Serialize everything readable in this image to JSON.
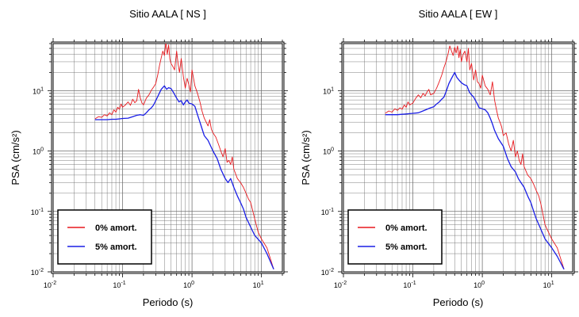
{
  "chart_data": [
    {
      "type": "line",
      "title": "Sitio AALA [ NS ]",
      "xlabel": "Periodo (s)",
      "ylabel": "PSA (cm/s²)",
      "xscale": "log",
      "yscale": "log",
      "xlim": [
        0.01,
        20
      ],
      "ylim": [
        0.01,
        60
      ],
      "grid": true,
      "legend_position": "bottom-left",
      "x_ticks": [
        {
          "base": "10",
          "exp": "-2"
        },
        {
          "base": "10",
          "exp": "-1"
        },
        {
          "base": "10",
          "exp": "0"
        },
        {
          "base": "10",
          "exp": "1"
        }
      ],
      "y_ticks": [
        {
          "base": "10",
          "exp": "-2"
        },
        {
          "base": "10",
          "exp": "-1"
        },
        {
          "base": "10",
          "exp": "0"
        },
        {
          "base": "10",
          "exp": "1"
        }
      ],
      "series": [
        {
          "name": "0% amort.",
          "color": "#e8191e",
          "x": [
            0.04,
            0.045,
            0.05,
            0.055,
            0.06,
            0.065,
            0.07,
            0.075,
            0.08,
            0.085,
            0.09,
            0.095,
            0.1,
            0.11,
            0.12,
            0.13,
            0.14,
            0.15,
            0.16,
            0.17,
            0.18,
            0.19,
            0.2,
            0.22,
            0.24,
            0.26,
            0.28,
            0.3,
            0.32,
            0.34,
            0.36,
            0.38,
            0.4,
            0.42,
            0.44,
            0.46,
            0.48,
            0.5,
            0.53,
            0.56,
            0.6,
            0.63,
            0.66,
            0.7,
            0.75,
            0.8,
            0.85,
            0.9,
            0.95,
            1.0,
            1.1,
            1.2,
            1.3,
            1.4,
            1.5,
            1.6,
            1.7,
            1.8,
            1.9,
            2.0,
            2.2,
            2.4,
            2.6,
            2.8,
            3.0,
            3.2,
            3.4,
            3.6,
            3.8,
            4.0,
            4.5,
            5.0,
            5.5,
            6.0,
            6.5,
            7.0,
            8.0,
            9.0,
            10.0,
            12.0,
            15.0
          ],
          "values": [
            3.4,
            3.7,
            3.6,
            4.0,
            3.8,
            4.3,
            4.0,
            4.8,
            4.4,
            5.3,
            4.9,
            6.0,
            5.3,
            5.8,
            6.5,
            5.7,
            7.2,
            6.3,
            6.8,
            10.5,
            7.5,
            6.2,
            5.8,
            7.5,
            8.5,
            10.2,
            11.5,
            13.0,
            18.0,
            26.0,
            35.0,
            45.0,
            38.0,
            63.0,
            40.0,
            57.0,
            33.0,
            28.0,
            25.0,
            22.0,
            45.0,
            28.0,
            20.0,
            34.0,
            17.0,
            11.0,
            16.0,
            12.5,
            9.5,
            22.0,
            12.0,
            9.0,
            6.5,
            4.5,
            3.5,
            3.0,
            2.6,
            3.3,
            2.3,
            2.0,
            1.7,
            1.3,
            1.0,
            0.8,
            1.1,
            0.65,
            0.7,
            0.6,
            0.8,
            0.5,
            0.35,
            0.3,
            0.25,
            0.2,
            0.16,
            0.14,
            0.075,
            0.045,
            0.035,
            0.025,
            0.011
          ]
        },
        {
          "name": "5% amort.",
          "color": "#1a1ee6",
          "x": [
            0.04,
            0.05,
            0.06,
            0.07,
            0.08,
            0.09,
            0.1,
            0.12,
            0.14,
            0.16,
            0.18,
            0.2,
            0.22,
            0.24,
            0.26,
            0.28,
            0.3,
            0.33,
            0.36,
            0.4,
            0.43,
            0.46,
            0.5,
            0.55,
            0.6,
            0.65,
            0.7,
            0.75,
            0.8,
            0.85,
            0.9,
            1.0,
            1.1,
            1.2,
            1.3,
            1.4,
            1.5,
            1.7,
            2.0,
            2.3,
            2.6,
            3.0,
            3.3,
            3.6,
            4.0,
            4.5,
            5.0,
            5.5,
            6.0,
            7.0,
            8.0,
            10.0,
            12.0,
            15.0
          ],
          "values": [
            3.3,
            3.3,
            3.3,
            3.35,
            3.35,
            3.4,
            3.45,
            3.5,
            3.7,
            3.9,
            4.0,
            3.9,
            4.3,
            4.8,
            5.2,
            5.8,
            6.8,
            8.5,
            10.5,
            12.0,
            10.5,
            11.2,
            10.8,
            9.0,
            7.5,
            6.5,
            6.8,
            5.8,
            6.5,
            7.0,
            6.2,
            6.0,
            5.5,
            4.0,
            3.0,
            2.3,
            1.8,
            1.5,
            1.0,
            0.75,
            0.5,
            0.35,
            0.3,
            0.35,
            0.25,
            0.18,
            0.14,
            0.11,
            0.08,
            0.055,
            0.04,
            0.03,
            0.02,
            0.011
          ]
        }
      ]
    },
    {
      "type": "line",
      "title": "Sitio AALA [ EW ]",
      "xlabel": "Periodo (s)",
      "ylabel": "PSA (cm/s²)",
      "xscale": "log",
      "yscale": "log",
      "xlim": [
        0.01,
        20
      ],
      "ylim": [
        0.01,
        60
      ],
      "grid": true,
      "legend_position": "bottom-left",
      "x_ticks": [
        {
          "base": "10",
          "exp": "-2"
        },
        {
          "base": "10",
          "exp": "-1"
        },
        {
          "base": "10",
          "exp": "0"
        },
        {
          "base": "10",
          "exp": "1"
        }
      ],
      "y_ticks": [
        {
          "base": "10",
          "exp": "-2"
        },
        {
          "base": "10",
          "exp": "-1"
        },
        {
          "base": "10",
          "exp": "0"
        },
        {
          "base": "10",
          "exp": "1"
        }
      ],
      "series": [
        {
          "name": "0% amort.",
          "color": "#e8191e",
          "x": [
            0.04,
            0.045,
            0.05,
            0.055,
            0.06,
            0.065,
            0.07,
            0.075,
            0.08,
            0.085,
            0.09,
            0.1,
            0.11,
            0.12,
            0.13,
            0.14,
            0.15,
            0.16,
            0.17,
            0.18,
            0.2,
            0.22,
            0.24,
            0.26,
            0.28,
            0.3,
            0.32,
            0.34,
            0.36,
            0.38,
            0.4,
            0.42,
            0.44,
            0.46,
            0.48,
            0.5,
            0.53,
            0.56,
            0.6,
            0.63,
            0.66,
            0.7,
            0.75,
            0.8,
            0.85,
            0.9,
            0.95,
            1.0,
            1.1,
            1.2,
            1.3,
            1.4,
            1.5,
            1.6,
            1.7,
            1.8,
            1.9,
            2.0,
            2.2,
            2.4,
            2.6,
            2.8,
            3.0,
            3.2,
            3.4,
            3.6,
            3.8,
            4.0,
            4.5,
            5.0,
            5.5,
            6.0,
            6.5,
            7.0,
            8.0,
            9.0,
            10.0,
            12.0,
            15.0
          ],
          "values": [
            4.2,
            4.6,
            4.4,
            5.0,
            4.7,
            5.2,
            4.9,
            5.8,
            5.3,
            6.5,
            5.8,
            6.2,
            7.5,
            8.5,
            7.6,
            9.0,
            8.2,
            9.5,
            10.5,
            8.5,
            9.0,
            11.0,
            14.0,
            18.0,
            24.0,
            30.0,
            40.0,
            55.0,
            45.0,
            38.0,
            52.0,
            42.0,
            55.0,
            35.0,
            48.0,
            30.0,
            40.0,
            45.0,
            30.0,
            50.0,
            22.0,
            28.0,
            15.0,
            22.0,
            14.0,
            13.0,
            11.0,
            18.0,
            12.0,
            10.5,
            8.5,
            14.0,
            7.0,
            4.8,
            3.5,
            3.0,
            2.5,
            1.8,
            2.0,
            1.3,
            1.0,
            1.5,
            0.8,
            1.0,
            0.7,
            0.6,
            0.9,
            0.55,
            0.4,
            0.35,
            0.28,
            0.22,
            0.18,
            0.13,
            0.06,
            0.045,
            0.035,
            0.025,
            0.011
          ]
        },
        {
          "name": "5% amort.",
          "color": "#1a1ee6",
          "x": [
            0.04,
            0.05,
            0.06,
            0.07,
            0.08,
            0.09,
            0.1,
            0.12,
            0.14,
            0.16,
            0.18,
            0.2,
            0.22,
            0.24,
            0.26,
            0.28,
            0.3,
            0.33,
            0.36,
            0.4,
            0.43,
            0.46,
            0.5,
            0.55,
            0.6,
            0.65,
            0.7,
            0.75,
            0.8,
            0.85,
            0.9,
            1.0,
            1.1,
            1.2,
            1.3,
            1.4,
            1.5,
            1.7,
            2.0,
            2.3,
            2.6,
            3.0,
            3.3,
            3.6,
            4.0,
            4.5,
            5.0,
            5.5,
            6.0,
            7.0,
            8.0,
            10.0,
            12.0,
            15.0
          ],
          "values": [
            4.0,
            4.0,
            4.0,
            4.05,
            4.1,
            4.15,
            4.2,
            4.3,
            4.6,
            4.9,
            5.2,
            5.4,
            6.0,
            6.5,
            7.2,
            7.8,
            9.5,
            13.0,
            16.0,
            20.0,
            16.5,
            15.0,
            13.5,
            12.5,
            12.0,
            9.5,
            8.5,
            7.8,
            6.8,
            6.0,
            5.2,
            5.0,
            4.8,
            4.3,
            3.5,
            2.8,
            2.2,
            1.6,
            1.2,
            0.75,
            0.55,
            0.45,
            0.35,
            0.3,
            0.25,
            0.18,
            0.14,
            0.1,
            0.075,
            0.05,
            0.035,
            0.025,
            0.018,
            0.011
          ]
        }
      ]
    }
  ]
}
